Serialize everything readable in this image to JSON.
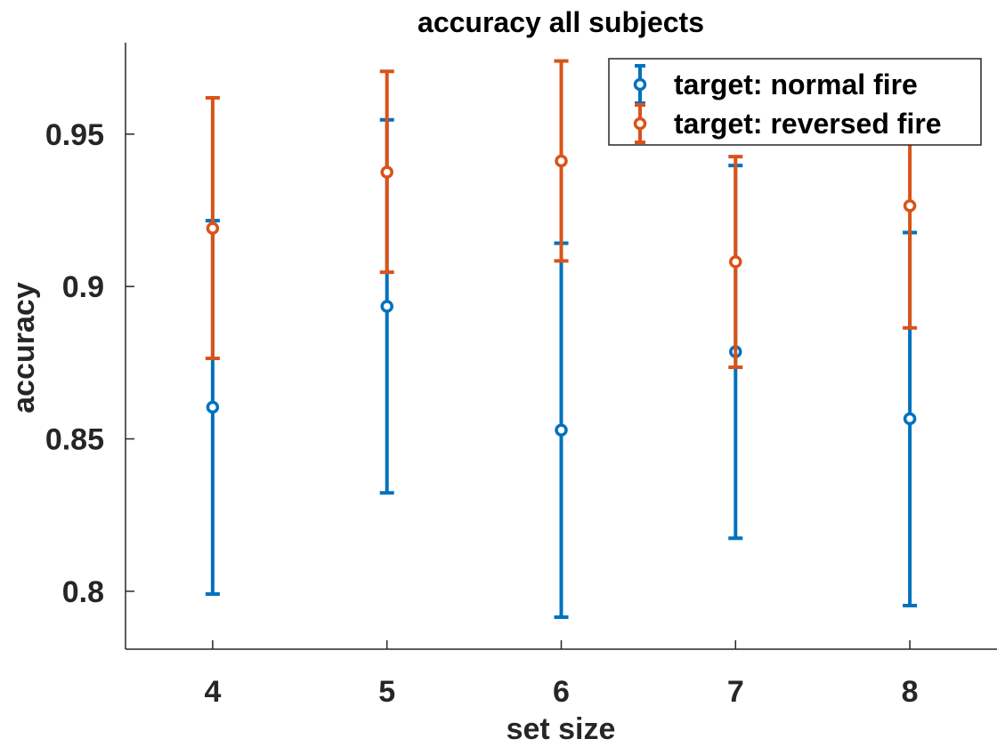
{
  "chart_data": {
    "type": "errorbar",
    "title": "accuracy all subjects",
    "xlabel": "set size",
    "ylabel": "accuracy",
    "xlim": [
      3.5,
      8.5
    ],
    "ylim": [
      0.781,
      0.98
    ],
    "x": [
      4,
      5,
      6,
      7,
      8
    ],
    "x_tick_labels": [
      "4",
      "5",
      "6",
      "7",
      "8"
    ],
    "y_ticks": [
      0.8,
      0.85,
      0.9,
      0.95
    ],
    "y_tick_labels": [
      "0.8",
      "0.85",
      "0.9",
      "0.95"
    ],
    "grid": false,
    "legend_position": "top-right",
    "series": [
      {
        "name": "target: normal fire",
        "color": "#0072BD",
        "values": [
          0.8604,
          0.8935,
          0.8529,
          0.8786,
          0.8566
        ],
        "lower": [
          0.7991,
          0.8323,
          0.7915,
          0.8174,
          0.7953
        ],
        "upper": [
          0.9216,
          0.9547,
          0.9142,
          0.9397,
          0.9177
        ]
      },
      {
        "name": "target: reversed fire",
        "color": "#D95319",
        "values": [
          0.9191,
          0.9375,
          0.9412,
          0.9081,
          0.9265
        ],
        "lower": [
          0.8764,
          0.9047,
          0.9084,
          0.8735,
          0.8864
        ],
        "upper": [
          0.9619,
          0.9706,
          0.974,
          0.9426,
          0.9667
        ]
      }
    ]
  }
}
